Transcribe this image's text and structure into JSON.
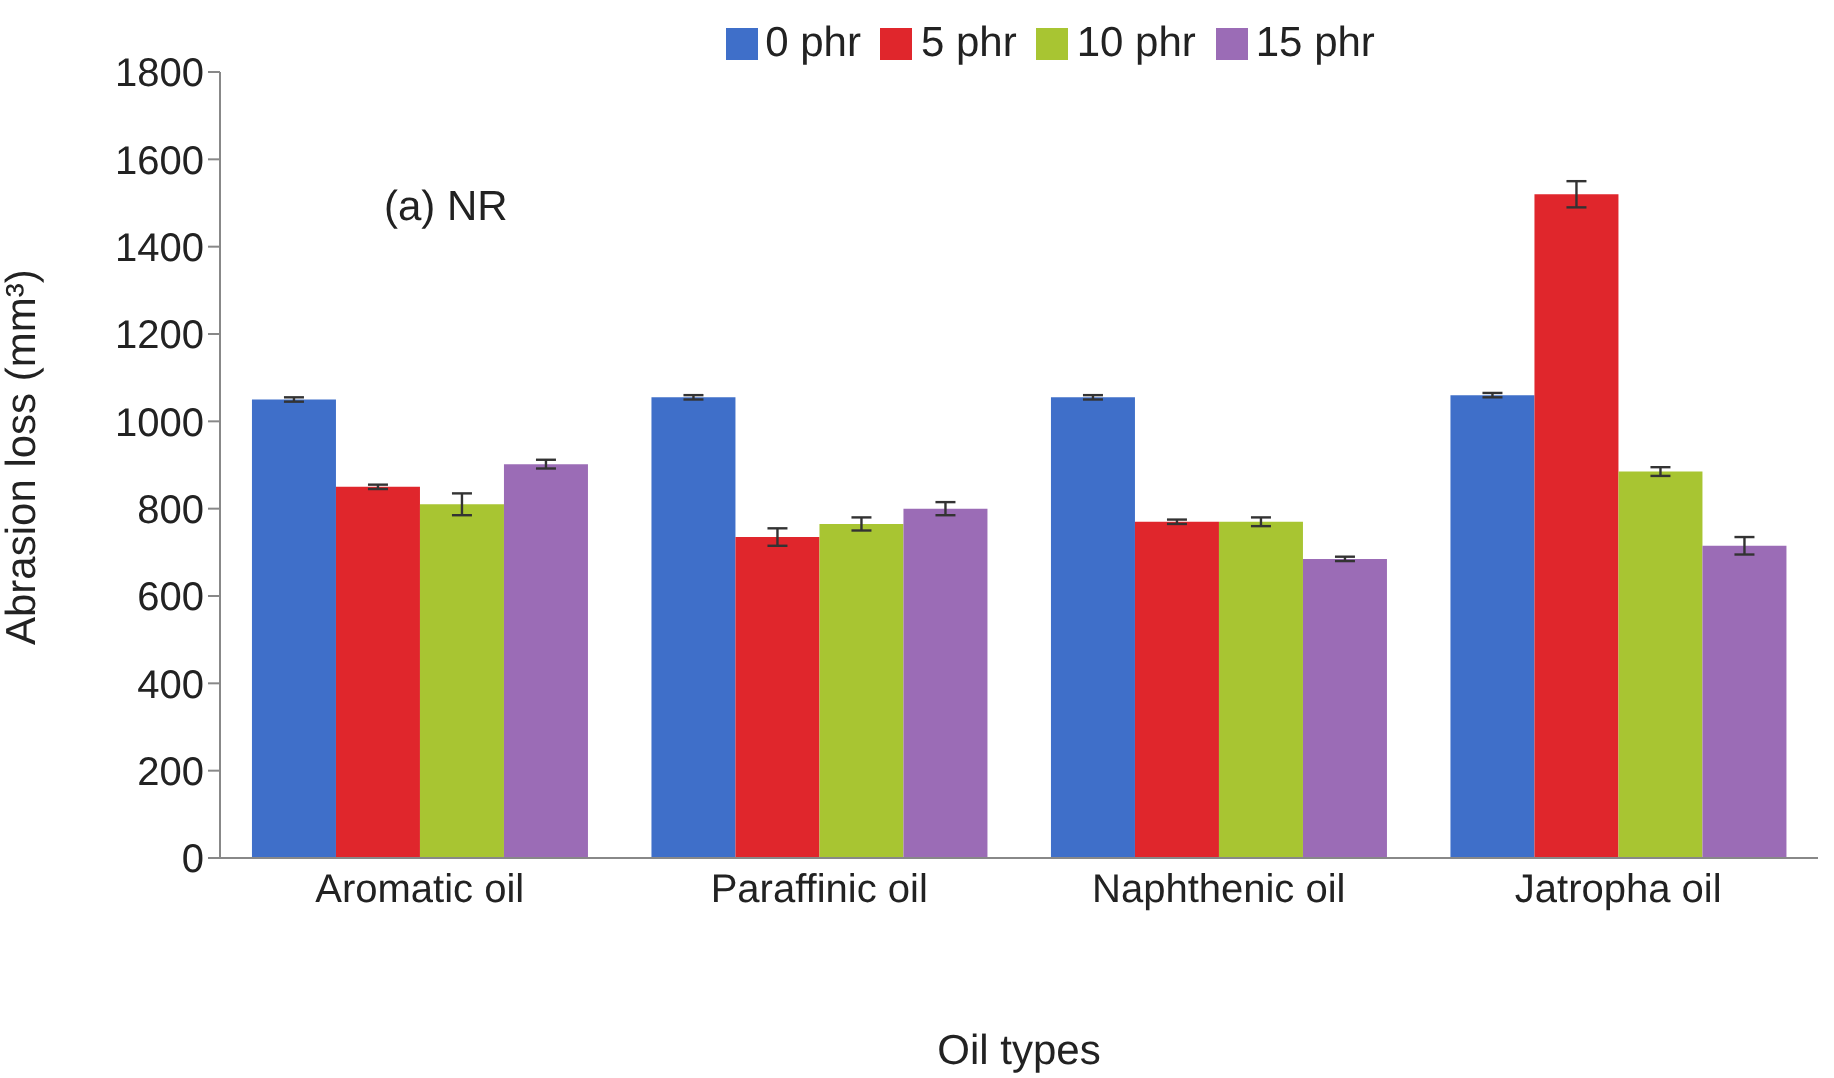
{
  "chart_data": {
    "type": "bar",
    "xlabel": "Oil types",
    "ylabel": "Abrasion loss (mm³)",
    "annotations": [
      "(a) NR"
    ],
    "categories": [
      "Aromatic oil",
      "Paraffinic oil",
      "Naphthenic oil",
      "Jatropha oil"
    ],
    "series": [
      {
        "name": "0 phr",
        "color": "#3f6fc9",
        "values": [
          1050,
          1055,
          1055,
          1060
        ],
        "errors": [
          5,
          5,
          5,
          5
        ]
      },
      {
        "name": "5 phr",
        "color": "#e0262c",
        "values": [
          850,
          735,
          770,
          1520
        ],
        "errors": [
          5,
          20,
          5,
          30
        ]
      },
      {
        "name": "10 phr",
        "color": "#a8c532",
        "values": [
          810,
          765,
          770,
          885
        ],
        "errors": [
          25,
          15,
          10,
          10
        ]
      },
      {
        "name": "15 phr",
        "color": "#9b6cb6",
        "values": [
          902,
          800,
          685,
          715
        ],
        "errors": [
          10,
          15,
          5,
          20
        ]
      }
    ],
    "ylim": [
      0,
      1800
    ],
    "yticks": [
      0,
      200,
      400,
      600,
      800,
      1000,
      1200,
      1400,
      1600,
      1800
    ],
    "grid": false,
    "legend": "top"
  }
}
